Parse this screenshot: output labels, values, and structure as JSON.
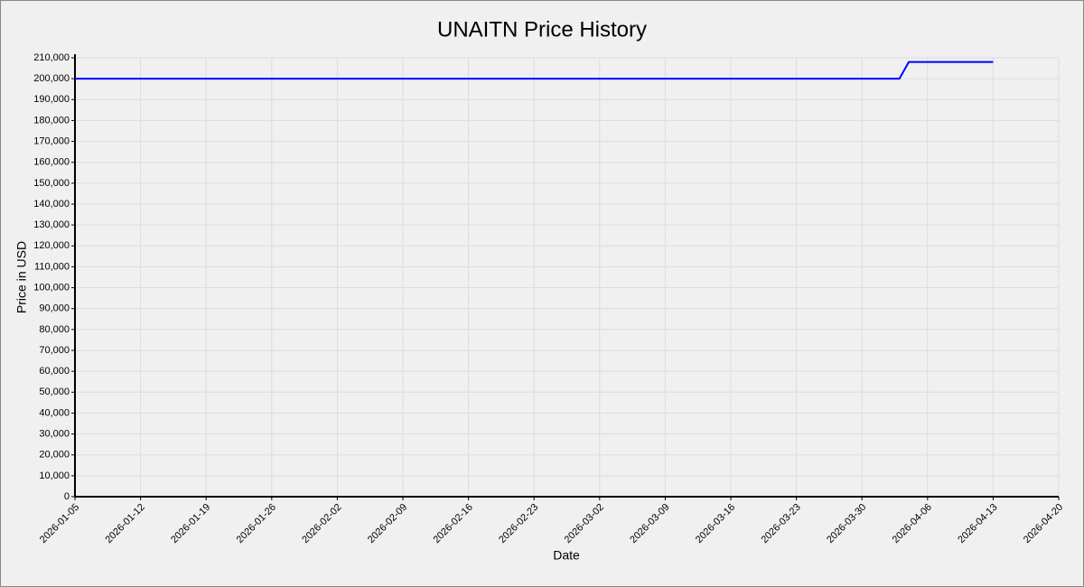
{
  "chart_data": {
    "type": "line",
    "title": "UNAITN Price History",
    "x_label": "Date",
    "y_label": "Price in USD",
    "x": [
      "2026-01-05",
      "2026-04-03",
      "2026-04-04",
      "2026-04-13"
    ],
    "values": [
      200000,
      200000,
      208000,
      208000
    ],
    "color": "#0000ff",
    "xlim": [
      "2026-01-05",
      "2026-04-20"
    ],
    "xticks": [
      "2026-01-05",
      "2026-01-12",
      "2026-01-19",
      "2026-01-26",
      "2026-02-02",
      "2026-02-09",
      "2026-02-16",
      "2026-02-23",
      "2026-03-02",
      "2026-03-09",
      "2026-03-16",
      "2026-03-23",
      "2026-03-30",
      "2026-04-06",
      "2026-04-13",
      "2026-04-20"
    ],
    "ylim": [
      0,
      210000
    ],
    "yticks": [
      0,
      {
        "value": 10000,
        "label": "10,000"
      },
      {
        "value": 20000,
        "label": "20,000"
      },
      {
        "value": 30000,
        "label": "30,000"
      },
      {
        "value": 40000,
        "label": "40,000"
      },
      {
        "value": 50000,
        "label": "50,000"
      },
      {
        "value": 60000,
        "label": "60,000"
      },
      {
        "value": 70000,
        "label": "70,000"
      },
      {
        "value": 80000,
        "label": "80,000"
      },
      {
        "value": 90000,
        "label": "90,000"
      },
      {
        "value": 100000,
        "label": "100,000"
      },
      {
        "value": 110000,
        "label": "110,000"
      },
      {
        "value": 120000,
        "label": "120,000"
      },
      {
        "value": 130000,
        "label": "130,000"
      },
      {
        "value": 140000,
        "label": "140,000"
      },
      {
        "value": 150000,
        "label": "150,000"
      },
      {
        "value": 160000,
        "label": "160,000"
      },
      {
        "value": 170000,
        "label": "170,000"
      },
      {
        "value": 180000,
        "label": "180,000"
      },
      {
        "value": 190000,
        "label": "190,000"
      },
      {
        "value": 200000,
        "label": "200,000"
      },
      {
        "value": 210000,
        "label": "210,000"
      }
    ],
    "grid": true
  }
}
